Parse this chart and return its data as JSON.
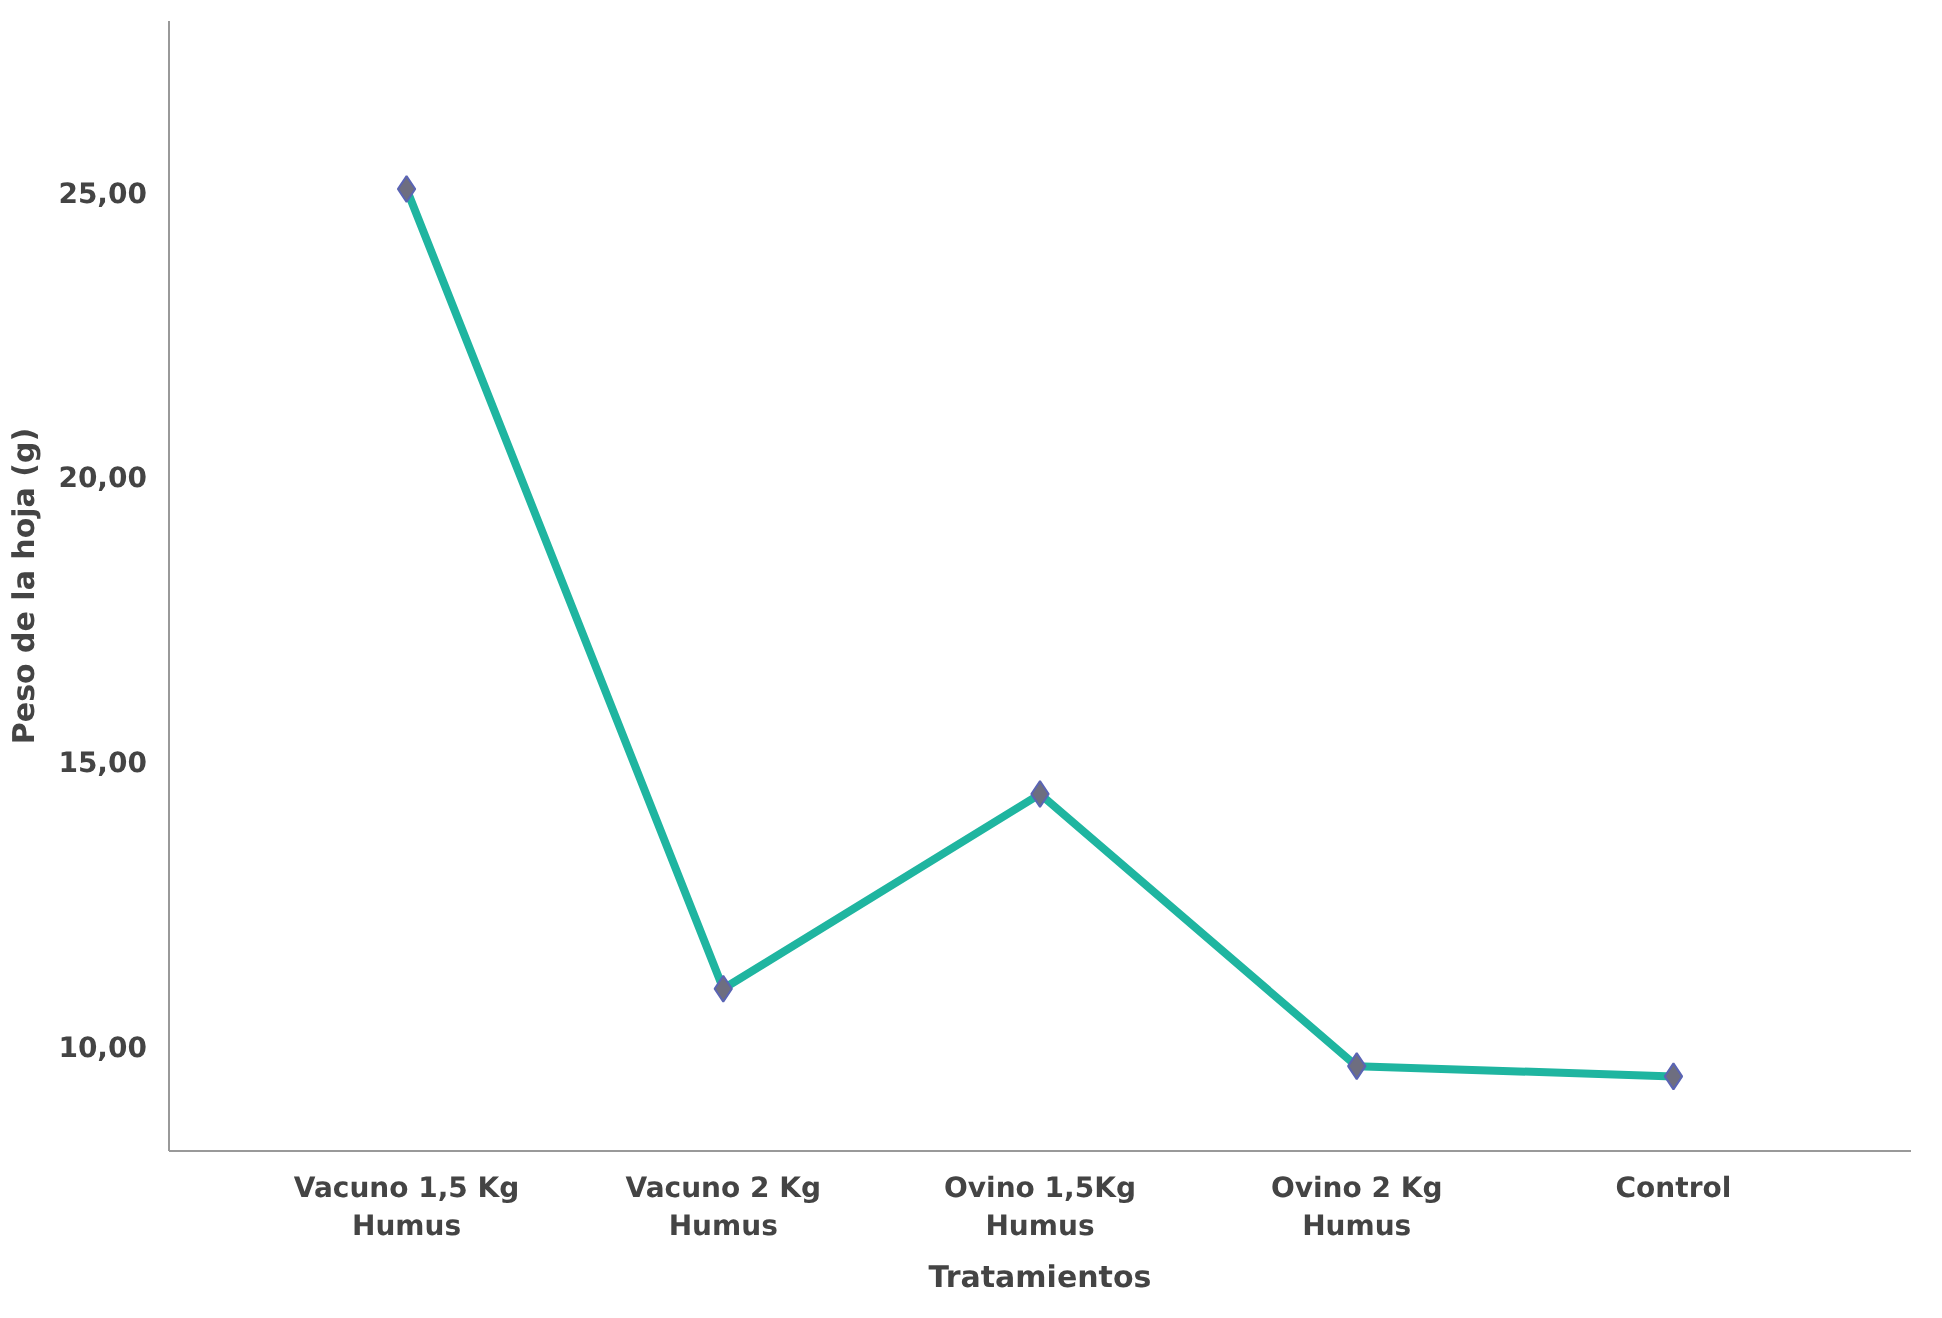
{
  "chart_data": {
    "type": "line",
    "xlabel": "Tratamientos",
    "ylabel": "Peso de la hoja (g)",
    "categories": [
      "Vacuno 1,5 Kg\nHumus",
      "Vacuno 2 Kg\nHumus",
      "Ovino 1,5Kg\nHumus",
      "Ovino 2 Kg\nHumus",
      "Control"
    ],
    "series": [
      {
        "color": "#1fb5a0",
        "values": [
          25.05,
          11.0,
          14.42,
          9.64,
          9.46
        ]
      }
    ],
    "ylim": [
      8.15,
      28.0
    ],
    "yticks": [
      {
        "value": 10,
        "label": "10,00"
      },
      {
        "value": 15,
        "label": "15,00"
      },
      {
        "value": 20,
        "label": "20,00"
      },
      {
        "value": 25,
        "label": "25,00"
      }
    ],
    "grid": false,
    "marker": "diamond",
    "line_style": "solid"
  }
}
